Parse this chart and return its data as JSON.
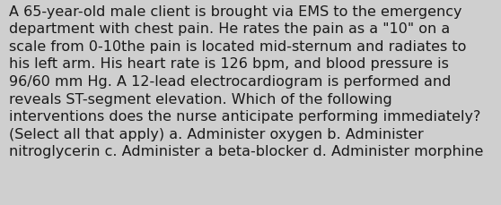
{
  "lines": [
    "A 65-year-old male client is brought via EMS to the emergency",
    "department with chest pain. He rates the pain as a \"10\" on a",
    "scale from 0-10the pain is located mid-sternum and radiates to",
    "his left arm. His heart rate is 126 bpm, and blood pressure is",
    "96/60 mm Hg. A 12-lead electrocardiogram is performed and",
    "reveals ST-segment elevation. Which of the following",
    "interventions does the nurse anticipate performing immediately?",
    "(Select all that apply) a. Administer oxygen b. Administer",
    "nitroglycerin c. Administer a beta-blocker d. Administer morphine"
  ],
  "background_color": "#cfcfcf",
  "text_color": "#1a1a1a",
  "font_size": 11.5,
  "fig_width": 5.58,
  "fig_height": 2.3,
  "dpi": 100
}
